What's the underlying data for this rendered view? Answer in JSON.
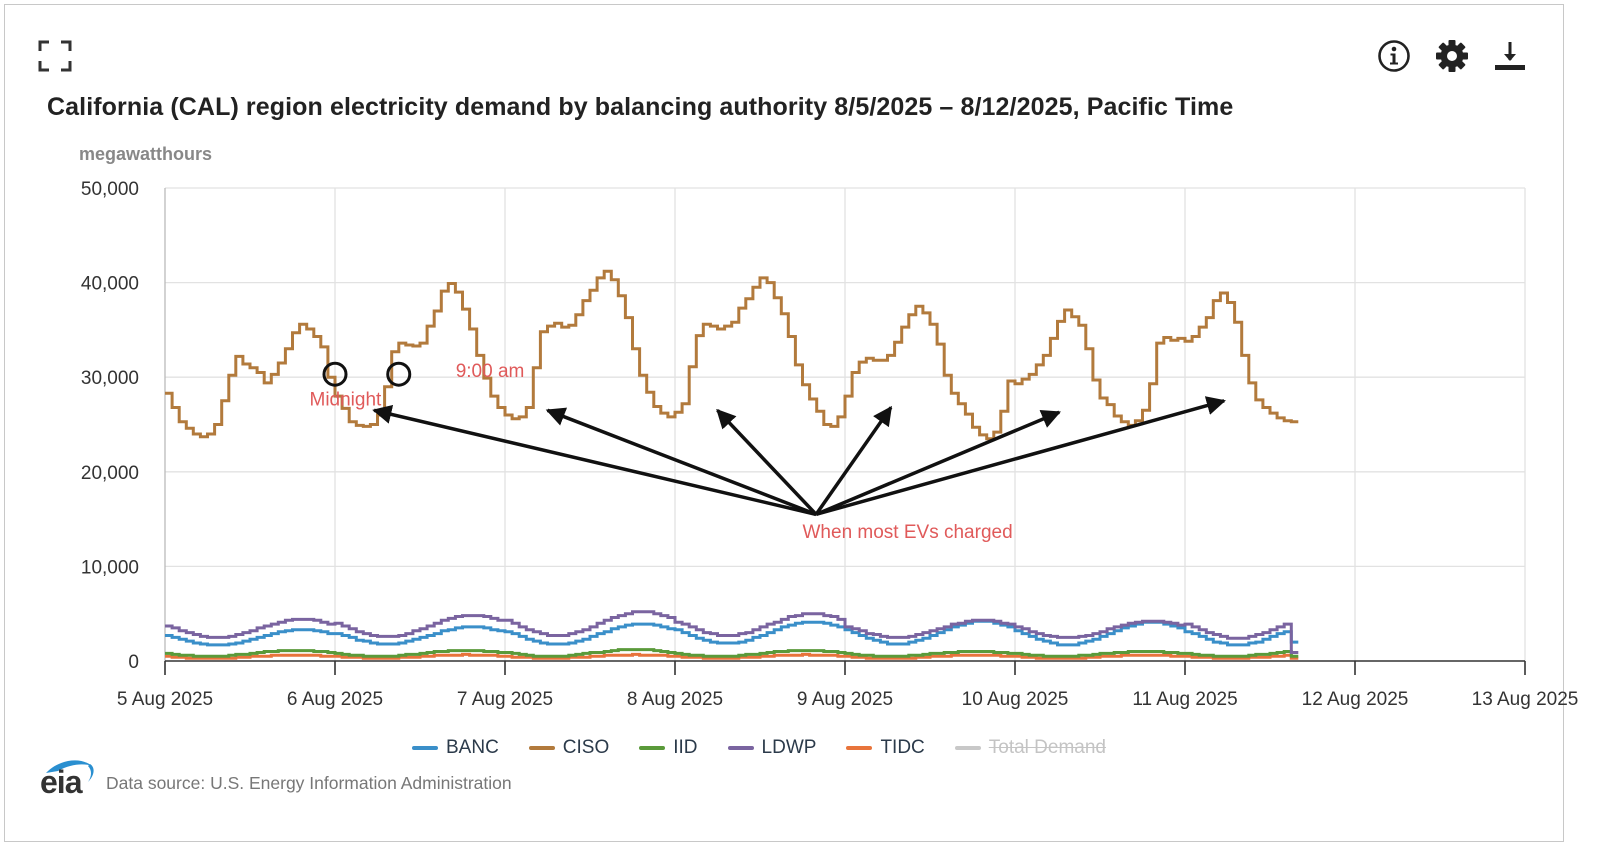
{
  "toolbar": {
    "expand_icon": "expand-icon",
    "info_icon": "info-icon",
    "settings_icon": "gear-icon",
    "download_icon": "download-icon"
  },
  "header": {
    "title": "California (CAL) region electricity demand by balancing authority 8/5/2025 – 8/12/2025, Pacific Time",
    "units": "megawatthours"
  },
  "footer": {
    "logo": "eia",
    "source": "Data source: U.S. Energy Information Administration"
  },
  "legend": [
    {
      "name": "BANC",
      "color": "#3a8fc9",
      "visible": true
    },
    {
      "name": "CISO",
      "color": "#b27a3c",
      "visible": true
    },
    {
      "name": "IID",
      "color": "#5a9a3a",
      "visible": true
    },
    {
      "name": "LDWP",
      "color": "#7a64a0",
      "visible": true
    },
    {
      "name": "TIDC",
      "color": "#e8743b",
      "visible": true
    },
    {
      "name": "Total Demand",
      "color": "#c8c8c8",
      "visible": false
    }
  ],
  "chart_data": {
    "type": "line",
    "step": true,
    "title": "California (CAL) region electricity demand by balancing authority 8/5/2025 – 8/12/2025, Pacific Time",
    "ylabel": "megawatthours",
    "xlabel": "",
    "ylim": [
      0,
      50000
    ],
    "yticks": [
      0,
      10000,
      20000,
      30000,
      40000,
      50000
    ],
    "ytick_labels": [
      "0",
      "10,000",
      "20,000",
      "30,000",
      "40,000",
      "50,000"
    ],
    "xlim_days": [
      0,
      8
    ],
    "xtick_labels": [
      "5 Aug 2025",
      "6 Aug 2025",
      "7 Aug 2025",
      "8 Aug 2025",
      "9 Aug 2025",
      "10 Aug 2025",
      "11 Aug 2025",
      "12 Aug 2025",
      "13 Aug 2025"
    ],
    "grid": true,
    "legend_position": "bottom",
    "x_unit": "hours since 5 Aug 2025 00:00",
    "series": [
      {
        "name": "CISO",
        "color": "#b27a3c",
        "start_hour": 0,
        "values": [
          28300,
          26800,
          25300,
          24600,
          24000,
          23700,
          24000,
          25000,
          27500,
          30200,
          32200,
          31400,
          31000,
          30500,
          29400,
          30300,
          31500,
          33000,
          34700,
          35600,
          35100,
          34300,
          33200,
          30000,
          28000,
          26700,
          25300,
          24900,
          24800,
          25000,
          26000,
          29000,
          32700,
          33600,
          33400,
          33300,
          33600,
          35400,
          37000,
          39100,
          39900,
          39000,
          37200,
          35100,
          32300,
          29900,
          28000,
          26800,
          26000,
          25600,
          25800,
          26800,
          31000,
          34800,
          35400,
          35700,
          35300,
          35500,
          36600,
          38100,
          39200,
          40500,
          41200,
          40300,
          38600,
          36300,
          33000,
          30200,
          28400,
          26900,
          26200,
          25800,
          26300,
          27200,
          31100,
          34400,
          35600,
          35400,
          35100,
          35400,
          35800,
          37300,
          38300,
          39500,
          40500,
          40000,
          38400,
          36700,
          34300,
          31300,
          29200,
          27700,
          26400,
          25000,
          24800,
          25800,
          28000,
          30500,
          31600,
          32000,
          31800,
          31800,
          32300,
          33700,
          35300,
          36600,
          37500,
          36800,
          35600,
          33500,
          30200,
          28300,
          27200,
          26100,
          24700,
          23900,
          23500,
          24200,
          26400,
          29600,
          29300,
          29800,
          30300,
          31300,
          32300,
          34100,
          35900,
          37100,
          36400,
          35500,
          33000,
          29700,
          27800,
          27100,
          25900,
          25300,
          24900,
          25400,
          26500,
          29300,
          33600,
          34200,
          33900,
          34100,
          33800,
          34300,
          35300,
          36300,
          38100,
          38900,
          37900,
          35800,
          32300,
          29400,
          27600,
          26800,
          26200,
          25700,
          25400,
          25300
        ]
      },
      {
        "name": "LDWP",
        "color": "#7a64a0",
        "start_hour": 0,
        "daily_min": [
          2500,
          2600,
          2700,
          2700,
          2500,
          2500,
          2400
        ],
        "daily_max": [
          4400,
          4800,
          5200,
          5000,
          4300,
          4200,
          4800
        ],
        "peak_hour": 19,
        "end_value": 900
      },
      {
        "name": "BANC",
        "color": "#3a8fc9",
        "start_hour": 0,
        "daily_min": [
          1700,
          1800,
          1800,
          1900,
          1800,
          1700,
          1700
        ],
        "daily_max": [
          3300,
          3600,
          3900,
          4100,
          4200,
          4100,
          4000
        ],
        "peak_hour": 19,
        "end_value": 2000
      },
      {
        "name": "IID",
        "color": "#5a9a3a",
        "start_hour": 0,
        "daily_min": [
          500,
          500,
          500,
          500,
          500,
          500,
          500
        ],
        "daily_max": [
          1100,
          1100,
          1200,
          1100,
          1000,
          1000,
          1100
        ],
        "peak_hour": 18,
        "end_value": 500
      },
      {
        "name": "TIDC",
        "color": "#e8743b",
        "start_hour": 0,
        "daily_min": [
          300,
          300,
          300,
          300,
          300,
          300,
          300
        ],
        "daily_max": [
          600,
          650,
          650,
          650,
          600,
          600,
          650
        ],
        "peak_hour": 18,
        "end_value": 300
      }
    ],
    "annotations": [
      {
        "type": "circle",
        "label": "",
        "day": 1.0,
        "value": 30000
      },
      {
        "type": "circle",
        "label": "",
        "day": 1.375,
        "value": 30000
      },
      {
        "type": "text",
        "label": "Midnight",
        "day": 0.85,
        "value": 27000
      },
      {
        "type": "text",
        "label": "9:00 am",
        "day": 1.71,
        "value": 30000
      },
      {
        "type": "text",
        "label": "When most EVs charged",
        "day": 3.75,
        "value": 13000
      },
      {
        "type": "arrows",
        "from": {
          "day": 3.83,
          "value": 15500
        },
        "to": [
          {
            "day": 1.23,
            "value": 26500
          },
          {
            "day": 2.25,
            "value": 26500
          },
          {
            "day": 3.25,
            "value": 26500
          },
          {
            "day": 4.27,
            "value": 26800
          },
          {
            "day": 5.26,
            "value": 26300
          },
          {
            "day": 6.23,
            "value": 27500
          }
        ]
      }
    ],
    "annotation_color": "#e05a5a"
  }
}
